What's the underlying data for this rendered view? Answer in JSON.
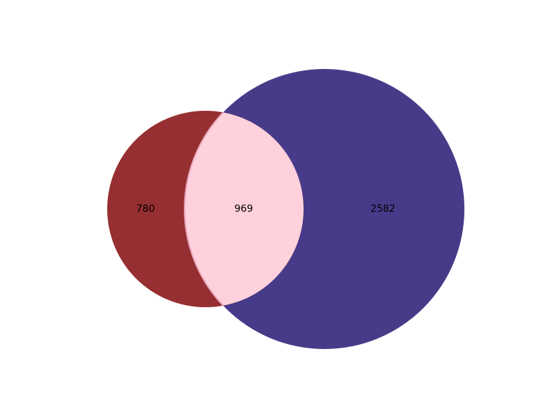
{
  "chart_data": {
    "type": "venn",
    "sets": [
      {
        "id": "A",
        "color": "#962f31"
      },
      {
        "id": "B",
        "color": "#473b89"
      }
    ],
    "regions": [
      {
        "id": "A_only",
        "label": "780",
        "value": 780
      },
      {
        "id": "A_and_B",
        "label": "969",
        "value": 969,
        "color": "#ffd1dc"
      },
      {
        "id": "B_only",
        "label": "2582",
        "value": 2582
      }
    ],
    "title": "",
    "legend": "none"
  }
}
